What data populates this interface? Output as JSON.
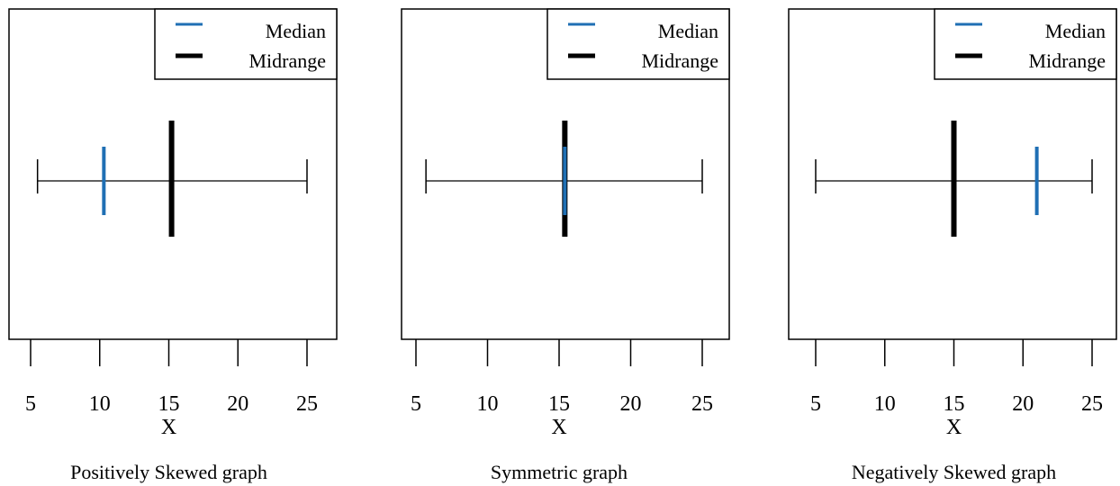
{
  "chart_data": [
    {
      "type": "range-plot",
      "caption": "Positively Skewed graph",
      "xlabel": "X",
      "xlim": [
        5,
        25
      ],
      "ticks": [
        5,
        10,
        15,
        20,
        25
      ],
      "tick_labels": [
        "5",
        "10",
        "15",
        "20",
        "25"
      ],
      "range": [
        5.5,
        25
      ],
      "median": 10.3,
      "midrange": 15.2,
      "legend": {
        "position": "top-right",
        "median_label": "Median",
        "midrange_label": "Midrange"
      }
    },
    {
      "type": "range-plot",
      "caption": "Symmetric graph",
      "xlabel": "X",
      "xlim": [
        5,
        25
      ],
      "ticks": [
        5,
        10,
        15,
        20,
        25
      ],
      "tick_labels": [
        "5",
        "10",
        "15",
        "20",
        "25"
      ],
      "range": [
        5.7,
        25
      ],
      "median": 15.4,
      "midrange": 15.4,
      "legend": {
        "position": "top-right",
        "median_label": "Median",
        "midrange_label": "Midrange"
      }
    },
    {
      "type": "range-plot",
      "caption": "Negatively Skewed graph",
      "xlabel": "X",
      "xlim": [
        5,
        25
      ],
      "ticks": [
        5,
        10,
        15,
        20,
        25
      ],
      "tick_labels": [
        "5",
        "10",
        "15",
        "20",
        "25"
      ],
      "range": [
        5,
        25
      ],
      "median": 21,
      "midrange": 15,
      "legend": {
        "position": "top-right",
        "median_label": "Median",
        "midrange_label": "Midrange"
      }
    }
  ],
  "colors": {
    "median": "#1f6fb4",
    "midrange": "#000000",
    "range_line": "#000000",
    "frame": "#000000"
  }
}
